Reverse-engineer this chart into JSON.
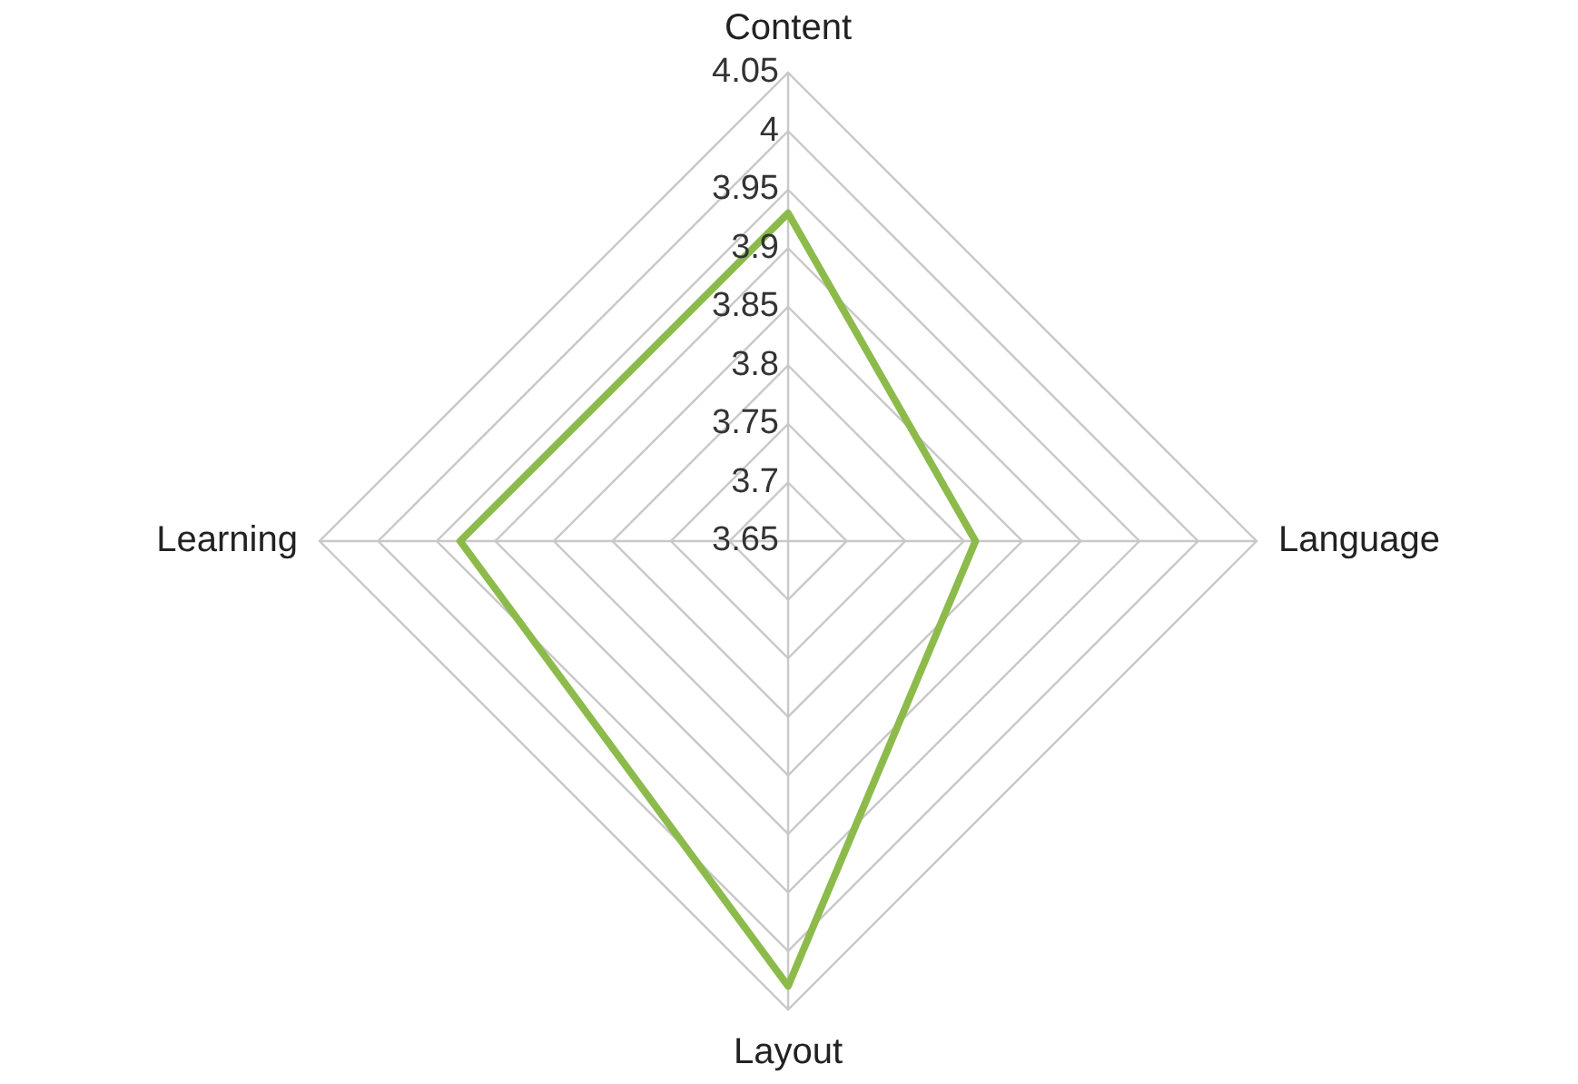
{
  "chart_data": {
    "type": "radar",
    "categories": [
      "Content",
      "Language",
      "Layout",
      "Learning"
    ],
    "series": [
      {
        "color": "#8cbb4c",
        "values": [
          3.93,
          3.81,
          4.03,
          3.93
        ]
      }
    ],
    "ylim": [
      3.65,
      4.05
    ],
    "yticks": [
      3.65,
      3.7,
      3.75,
      3.8,
      3.85,
      3.9,
      3.95,
      4,
      4.05
    ],
    "grid": true,
    "legend": false,
    "marker": "none",
    "line_style": "solid"
  }
}
